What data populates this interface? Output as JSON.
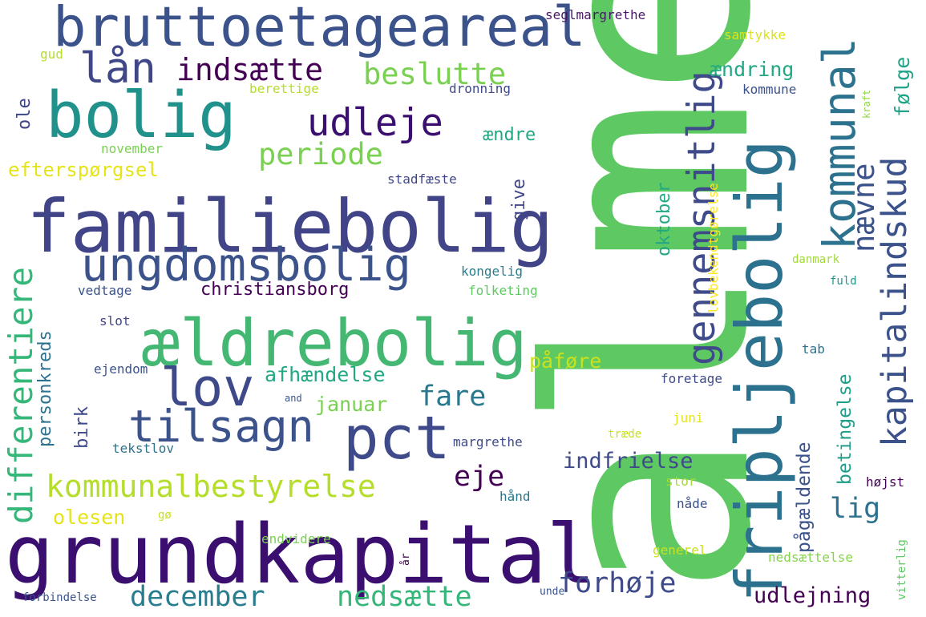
{
  "words": [
    {
      "text": "almen",
      "color": "#5ec962"
    },
    {
      "text": "grundkapital",
      "color": "#3b0f70"
    },
    {
      "text": "familiebolig",
      "color": "#414487"
    },
    {
      "text": "bruttoetageareal",
      "color": "#3b528b"
    },
    {
      "text": "fripljebolig",
      "color": "#2c728e"
    },
    {
      "text": "ældrebolig",
      "color": "#44b873"
    },
    {
      "text": "bolig",
      "color": "#21918c"
    },
    {
      "text": "ungdomsbolig",
      "color": "#3b528b"
    },
    {
      "text": "kommunal",
      "color": "#2c728e"
    },
    {
      "text": "pct",
      "color": "#3e4a89"
    },
    {
      "text": "tilsagn",
      "color": "#3b528b"
    },
    {
      "text": "lov",
      "color": "#3e4989"
    },
    {
      "text": "lån",
      "color": "#404788"
    },
    {
      "text": "gennemsnitlig",
      "color": "#3e4a89"
    },
    {
      "text": "kapitalindskud",
      "color": "#3b528b"
    },
    {
      "text": "udleje",
      "color": "#3b0f70"
    },
    {
      "text": "differentiere",
      "color": "#35b779"
    },
    {
      "text": "kommunalbestyrelse",
      "color": "#b5de2b"
    },
    {
      "text": "indsætte",
      "color": "#440154"
    },
    {
      "text": "beslutte",
      "color": "#7ad151"
    },
    {
      "text": "nævne",
      "color": "#3b528b"
    },
    {
      "text": "periode",
      "color": "#7ad151"
    },
    {
      "text": "december",
      "color": "#287d8e"
    },
    {
      "text": "nedsætte",
      "color": "#35b779"
    },
    {
      "text": "forhøje",
      "color": "#3e4a89"
    },
    {
      "text": "fare",
      "color": "#2a788e"
    },
    {
      "text": "eje",
      "color": "#440154"
    },
    {
      "text": "lig",
      "color": "#2c728e"
    },
    {
      "text": "indfrielse",
      "color": "#3e4a89"
    },
    {
      "text": "udlejning",
      "color": "#440154"
    },
    {
      "text": "afhændelse",
      "color": "#22a884"
    },
    {
      "text": "efterspørgsel",
      "color": "#e5e419"
    },
    {
      "text": "påføre",
      "color": "#cae11f"
    },
    {
      "text": "januar",
      "color": "#7ad151"
    },
    {
      "text": "olesen",
      "color": "#e5e419"
    },
    {
      "text": "ændring",
      "color": "#22a884"
    },
    {
      "text": "følge",
      "color": "#20a386"
    },
    {
      "text": "pågældende",
      "color": "#3b528b"
    },
    {
      "text": "betingelse",
      "color": "#1f9e89"
    },
    {
      "text": "oktober",
      "color": "#22a884"
    },
    {
      "text": "personkreds",
      "color": "#2c728e"
    },
    {
      "text": "christiansborg",
      "color": "#440154"
    },
    {
      "text": "birk",
      "color": "#3e4a89"
    },
    {
      "text": "ændre",
      "color": "#22a884"
    },
    {
      "text": "give",
      "color": "#404688"
    },
    {
      "text": "ole",
      "color": "#404788"
    },
    {
      "text": "seglmargrethe",
      "color": "#481668"
    },
    {
      "text": "samtykke",
      "color": "#dde318"
    },
    {
      "text": "gud",
      "color": "#b5de2b"
    },
    {
      "text": "berettige",
      "color": "#b5de2b"
    },
    {
      "text": "dronning",
      "color": "#3e4a89"
    },
    {
      "text": "kommune",
      "color": "#3b528b"
    },
    {
      "text": "kraft",
      "color": "#8fd744"
    },
    {
      "text": "november",
      "color": "#7ad151"
    },
    {
      "text": "stadfæste",
      "color": "#404688"
    },
    {
      "text": "lovbekendtgørelse",
      "color": "#fde725"
    },
    {
      "text": "danmark",
      "color": "#a2da37"
    },
    {
      "text": "kongelig",
      "color": "#287d8e"
    },
    {
      "text": "fuld",
      "color": "#1f988b"
    },
    {
      "text": "vedtage",
      "color": "#3b528b"
    },
    {
      "text": "folketing",
      "color": "#5ec962"
    },
    {
      "text": "slot",
      "color": "#404688"
    },
    {
      "text": "tab",
      "color": "#2c728e"
    },
    {
      "text": "ejendom",
      "color": "#3b528b"
    },
    {
      "text": "foretage",
      "color": "#3e4a89"
    },
    {
      "text": "and",
      "color": "#3b528b"
    },
    {
      "text": "juni",
      "color": "#e5e419"
    },
    {
      "text": "tekstlov",
      "color": "#2c728e"
    },
    {
      "text": "træde",
      "color": "#c8e020"
    },
    {
      "text": "margrethe",
      "color": "#3e4a89"
    },
    {
      "text": "højst",
      "color": "#440154"
    },
    {
      "text": "stor",
      "color": "#a2da37"
    },
    {
      "text": "gø",
      "color": "#c8e020"
    },
    {
      "text": "hånd",
      "color": "#2a788e"
    },
    {
      "text": "nåde",
      "color": "#3b528b"
    },
    {
      "text": "endvidere",
      "color": "#7ad151"
    },
    {
      "text": "generel",
      "color": "#cae11f"
    },
    {
      "text": "år",
      "color": "#440154"
    },
    {
      "text": "nedsættelse",
      "color": "#86d549"
    },
    {
      "text": "vitterlig",
      "color": "#5ec962"
    },
    {
      "text": "forbindelse",
      "color": "#3b528b"
    },
    {
      "text": "unde",
      "color": "#3b528b"
    }
  ]
}
